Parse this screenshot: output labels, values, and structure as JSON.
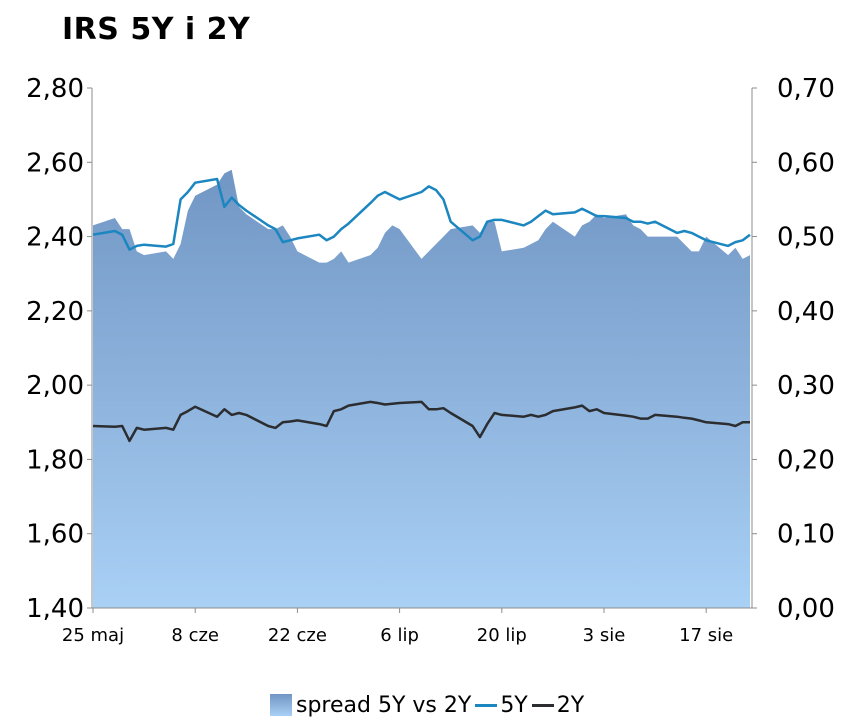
{
  "chart_data": {
    "type": "line",
    "title": "IRS 5Y i 2Y",
    "x_tick_labels": [
      "25 maj",
      "8 cze",
      "22 cze",
      "6 lip",
      "20 lip",
      "3 sie",
      "17 sie"
    ],
    "y_left": {
      "ylim": [
        1.4,
        2.8
      ],
      "ticks": [
        "1,40",
        "1,60",
        "1,80",
        "2,00",
        "2,20",
        "2,40",
        "2,60",
        "2,80"
      ]
    },
    "y_right": {
      "ylim": [
        0.0,
        0.7
      ],
      "ticks": [
        "0,00",
        "0,10",
        "0,20",
        "0,30",
        "0,40",
        "0,50",
        "0,60",
        "0,70"
      ]
    },
    "x_days": [
      0,
      3,
      4,
      5,
      6,
      7,
      10,
      11,
      12,
      13,
      14,
      17,
      18,
      19,
      20,
      21,
      24,
      25,
      26,
      27,
      28,
      31,
      32,
      33,
      34,
      35,
      38,
      39,
      40,
      41,
      42,
      45,
      46,
      47,
      48,
      49,
      52,
      53,
      54,
      55,
      56,
      59,
      60,
      61,
      62,
      63,
      66,
      67,
      68,
      69,
      70,
      73,
      74,
      75,
      76,
      77,
      80,
      81,
      82,
      83,
      84,
      87,
      88,
      89,
      90
    ],
    "series": [
      {
        "name": "spread 5Y vs 2Y",
        "axis": "right",
        "render": "area",
        "color": "#7fa5cc",
        "values": [
          0.515,
          0.525,
          0.51,
          0.51,
          0.48,
          0.475,
          0.48,
          0.47,
          0.49,
          0.535,
          0.555,
          0.57,
          0.585,
          0.59,
          0.54,
          0.53,
          0.51,
          0.51,
          0.515,
          0.5,
          0.48,
          0.465,
          0.465,
          0.47,
          0.48,
          0.465,
          0.475,
          0.485,
          0.505,
          0.515,
          0.51,
          0.47,
          0.48,
          0.49,
          0.5,
          0.51,
          0.515,
          0.505,
          0.52,
          0.52,
          0.48,
          0.485,
          0.49,
          0.495,
          0.51,
          0.52,
          0.5,
          0.515,
          0.52,
          0.53,
          0.525,
          0.53,
          0.515,
          0.51,
          0.5,
          0.5,
          0.5,
          0.49,
          0.48,
          0.48,
          0.5,
          0.475,
          0.485,
          0.47,
          0.475
        ]
      },
      {
        "name": "5Y",
        "axis": "left",
        "color": "#1b86c0",
        "values": [
          2.405,
          2.415,
          2.405,
          2.365,
          2.375,
          2.378,
          2.373,
          2.38,
          2.5,
          2.52,
          2.545,
          2.555,
          2.48,
          2.505,
          2.485,
          2.47,
          2.43,
          2.42,
          2.385,
          2.39,
          2.395,
          2.405,
          2.39,
          2.4,
          2.42,
          2.435,
          2.49,
          2.51,
          2.52,
          2.51,
          2.5,
          2.52,
          2.535,
          2.525,
          2.5,
          2.44,
          2.39,
          2.4,
          2.44,
          2.445,
          2.445,
          2.43,
          2.44,
          2.455,
          2.47,
          2.46,
          2.465,
          2.475,
          2.465,
          2.455,
          2.455,
          2.45,
          2.44,
          2.44,
          2.435,
          2.44,
          2.41,
          2.415,
          2.41,
          2.4,
          2.39,
          2.375,
          2.385,
          2.39,
          2.405
        ]
      },
      {
        "name": "2Y",
        "axis": "left",
        "color": "#2b2d30",
        "values": [
          1.89,
          1.888,
          1.89,
          1.85,
          1.885,
          1.88,
          1.885,
          1.88,
          1.92,
          1.93,
          1.942,
          1.915,
          1.935,
          1.92,
          1.925,
          1.92,
          1.89,
          1.885,
          1.9,
          1.902,
          1.905,
          1.895,
          1.89,
          1.93,
          1.935,
          1.945,
          1.955,
          1.952,
          1.948,
          1.95,
          1.952,
          1.955,
          1.935,
          1.935,
          1.938,
          1.925,
          1.89,
          1.86,
          1.895,
          1.925,
          1.92,
          1.915,
          1.92,
          1.915,
          1.92,
          1.93,
          1.94,
          1.945,
          1.93,
          1.935,
          1.925,
          1.918,
          1.915,
          1.91,
          1.91,
          1.92,
          1.915,
          1.912,
          1.91,
          1.905,
          1.9,
          1.895,
          1.89,
          1.9,
          1.9
        ]
      }
    ],
    "legend": {
      "position": "bottom"
    },
    "grid": false
  }
}
